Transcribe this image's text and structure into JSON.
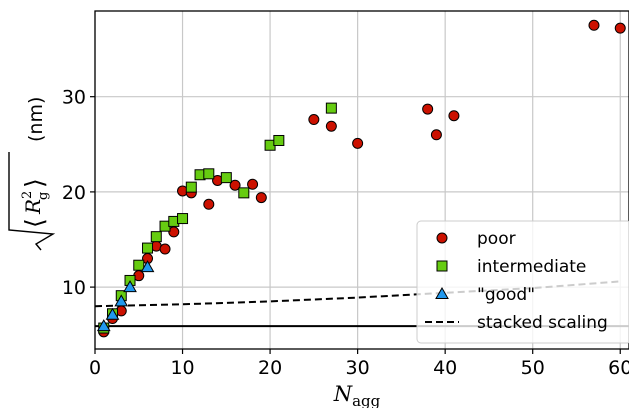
{
  "chart_data": {
    "type": "scatter",
    "xlabel": "N_agg",
    "xlabel_main": "N",
    "xlabel_sub": "agg",
    "ylabel": "√⟨R_g²⟩ (nm)",
    "ylabel_unit": "(nm)",
    "xlim": [
      0,
      61
    ],
    "ylim": [
      3.5,
      39
    ],
    "xticks": [
      0,
      10,
      20,
      30,
      40,
      50,
      60
    ],
    "yticks": [
      10,
      20,
      30
    ],
    "grid": true,
    "legend_position": "lower-right",
    "series": [
      {
        "name": "poor",
        "marker": "circle",
        "color": "#cc1100",
        "x": [
          1,
          2,
          3,
          5,
          6,
          7,
          8,
          9,
          10,
          11,
          13,
          14,
          16,
          18,
          19,
          25,
          27,
          30,
          38,
          39,
          41,
          57,
          60
        ],
        "y": [
          5.3,
          6.7,
          7.5,
          11.2,
          13.0,
          14.3,
          14.0,
          15.8,
          20.1,
          19.9,
          18.7,
          21.2,
          20.7,
          20.8,
          19.4,
          27.6,
          26.9,
          25.1,
          28.7,
          26.0,
          28.0,
          37.5,
          37.2
        ]
      },
      {
        "name": "intermediate",
        "marker": "square",
        "color": "#66cc11",
        "x": [
          1,
          2,
          3,
          4,
          5,
          6,
          7,
          8,
          9,
          10,
          11,
          12,
          13,
          15,
          17,
          20,
          21,
          27
        ],
        "y": [
          5.7,
          7.2,
          9.1,
          10.7,
          12.3,
          14.1,
          15.3,
          16.4,
          16.9,
          17.2,
          20.5,
          21.8,
          21.9,
          21.5,
          19.9,
          24.9,
          25.4,
          28.8
        ]
      },
      {
        "name": "\"good\"",
        "marker": "triangle",
        "color": "#2299ee",
        "x": [
          1,
          2,
          3,
          4,
          6
        ],
        "y": [
          5.9,
          7.1,
          8.5,
          10.0,
          12.1
        ]
      }
    ],
    "lines": [
      {
        "name": "stacked scaling",
        "style": "dashed",
        "x": [
          0,
          10,
          20,
          30,
          40,
          50,
          60
        ],
        "y": [
          8.0,
          8.2,
          8.5,
          8.9,
          9.4,
          9.9,
          10.6
        ]
      },
      {
        "name": "",
        "style": "solid",
        "x": [
          0,
          61
        ],
        "y": [
          5.9,
          5.9
        ]
      }
    ]
  }
}
